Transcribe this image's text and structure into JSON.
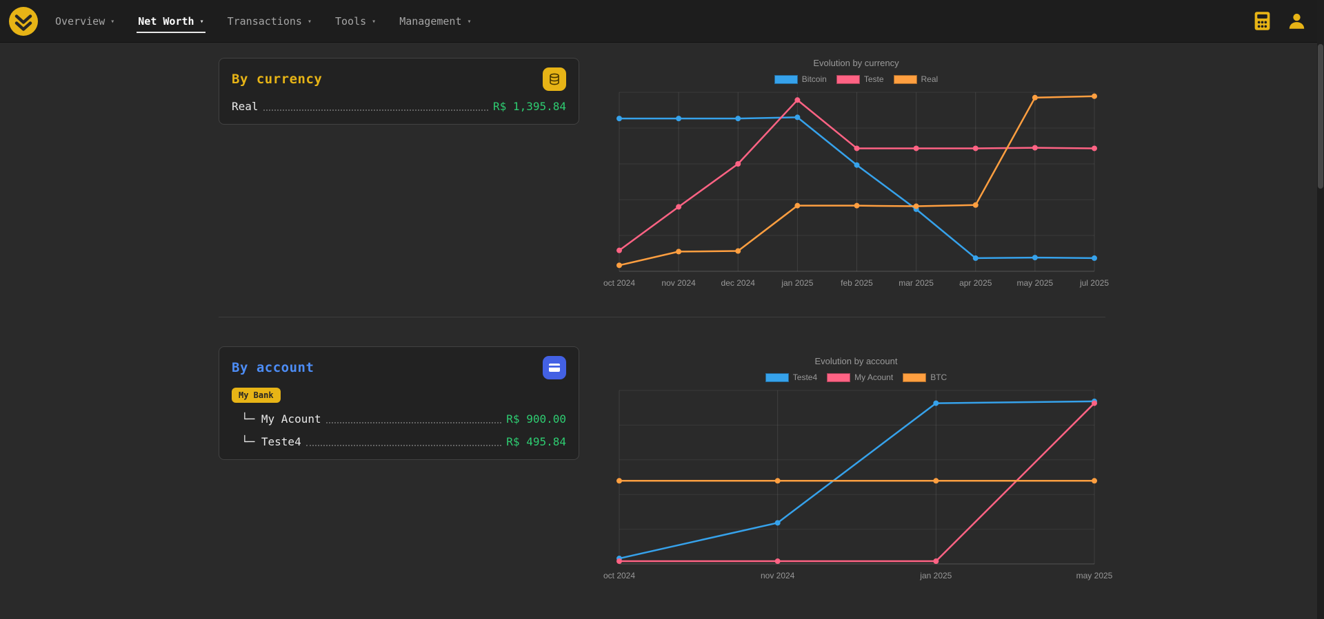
{
  "navbar": {
    "caret": "▾",
    "items": [
      {
        "label": "Overview",
        "active": false
      },
      {
        "label": "Net Worth",
        "active": true
      },
      {
        "label": "Transactions",
        "active": false
      },
      {
        "label": "Tools",
        "active": false
      },
      {
        "label": "Management",
        "active": false
      }
    ]
  },
  "cards": {
    "currency": {
      "title": "By currency",
      "rows": [
        {
          "label": "Real",
          "value": "R$ 1,395.84"
        }
      ]
    },
    "account": {
      "title": "By account",
      "badge": "My Bank",
      "rows": [
        {
          "label": "└─ My Acount",
          "value": "R$ 900.00"
        },
        {
          "label": "└─ Teste4",
          "value": "R$ 495.84"
        }
      ]
    }
  },
  "colors": {
    "accent_yellow": "#e7b416",
    "accent_blue": "#4361e4",
    "title_blue": "#4d8df6",
    "value_green": "#2ecc71",
    "chart_blue": "#36a2eb",
    "chart_pink": "#ff6384",
    "chart_orange": "#ff9f40"
  },
  "chart_data": [
    {
      "type": "line",
      "title": "Evolution by currency",
      "legend_position": "top",
      "grid": true,
      "categories": [
        "oct 2024",
        "nov 2024",
        "dec 2024",
        "jan 2025",
        "feb 2025",
        "mar 2025",
        "apr 2025",
        "may 2025",
        "jul 2025"
      ],
      "ylim": [
        0,
        1500
      ],
      "series": [
        {
          "name": "Bitcoin",
          "color": "#36a2eb",
          "values": [
            1280,
            1280,
            1280,
            1290,
            890,
            520,
            110,
            115,
            110
          ]
        },
        {
          "name": "Teste",
          "color": "#ff6384",
          "values": [
            175,
            540,
            900,
            1435,
            1030,
            1030,
            1030,
            1035,
            1030
          ]
        },
        {
          "name": "Real",
          "color": "#ff9f40",
          "values": [
            50,
            165,
            170,
            550,
            550,
            545,
            555,
            1455,
            1467
          ]
        }
      ]
    },
    {
      "type": "line",
      "title": "Evolution by account",
      "legend_position": "top",
      "grid": true,
      "categories": [
        "oct 2024",
        "nov 2024",
        "jan 2025",
        "may 2025"
      ],
      "ylim": [
        0,
        950
      ],
      "series": [
        {
          "name": "Teste4",
          "color": "#36a2eb",
          "values": [
            30,
            225,
            880,
            890
          ]
        },
        {
          "name": "My Acount",
          "color": "#ff6384",
          "values": [
            15,
            15,
            15,
            880
          ]
        },
        {
          "name": "BTC",
          "color": "#ff9f40",
          "values": [
            455,
            455,
            455,
            455
          ]
        }
      ]
    }
  ]
}
